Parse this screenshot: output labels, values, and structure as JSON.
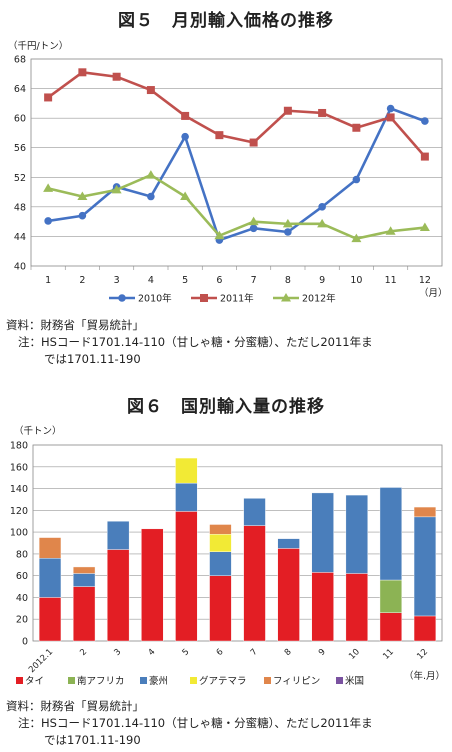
{
  "figure5": {
    "title": "図５　月別輸入価格の推移",
    "unit_label": "（千円/トン）",
    "x_unit_label": "（月）",
    "source": "資料：財務省「貿易統計」",
    "note_line1": "注：HSコード1701.14-110（甘しゃ糖・分蜜糖）、ただし2011年ま",
    "note_line2": "では1701.11-190"
  },
  "figure6": {
    "title": "図６　国別輸入量の推移",
    "unit_label": "（千トン）",
    "x_unit_label": "（年.月）",
    "source": "資料：財務省「貿易統計」",
    "note_line1": "注：HSコード1701.14-110（甘しゃ糖・分蜜糖）、ただし2011年ま",
    "note_line2": "では1701.11-190"
  },
  "chart_data": [
    {
      "type": "line",
      "title": "図５　月別輸入価格の推移",
      "ylabel": "（千円/トン）",
      "xlabel": "（月）",
      "categories": [
        "1",
        "2",
        "3",
        "4",
        "5",
        "6",
        "7",
        "8",
        "9",
        "10",
        "11",
        "12"
      ],
      "ylim": [
        40,
        68
      ],
      "yticks": [
        40,
        44,
        48,
        52,
        56,
        60,
        64,
        68
      ],
      "grid": true,
      "legend_position": "bottom",
      "series": [
        {
          "name": "2010年",
          "color": "#4472c4",
          "marker": "circle",
          "values": [
            46.1,
            46.8,
            50.7,
            49.4,
            57.5,
            43.5,
            45.1,
            44.6,
            48.0,
            51.7,
            61.3,
            59.6
          ]
        },
        {
          "name": "2011年",
          "color": "#c0504d",
          "marker": "square",
          "values": [
            62.8,
            66.2,
            65.6,
            63.8,
            60.3,
            57.7,
            56.7,
            61.0,
            60.7,
            58.7,
            60.1,
            54.8
          ]
        },
        {
          "name": "2012年",
          "color": "#9bbb59",
          "marker": "triangle",
          "values": [
            50.5,
            49.4,
            50.3,
            52.3,
            49.4,
            44.1,
            46.0,
            45.7,
            45.7,
            43.7,
            44.7,
            45.2
          ]
        }
      ]
    },
    {
      "type": "bar",
      "stacked": true,
      "title": "図６　国別輸入量の推移",
      "ylabel": "（千トン）",
      "xlabel": "（年.月）",
      "categories": [
        "2012.1",
        "2",
        "3",
        "4",
        "5",
        "6",
        "7",
        "8",
        "9",
        "10",
        "11",
        "12"
      ],
      "ylim": [
        0,
        180
      ],
      "yticks": [
        0,
        20,
        40,
        60,
        80,
        100,
        120,
        140,
        160,
        180
      ],
      "grid": true,
      "legend_position": "bottom",
      "series": [
        {
          "name": "タイ",
          "color": "#e31e24",
          "values": [
            40,
            50,
            84,
            103,
            119,
            60,
            106,
            85,
            63,
            62,
            26,
            23
          ]
        },
        {
          "name": "南アフリカ",
          "color": "#8cb354",
          "values": [
            0,
            0,
            0,
            0,
            0,
            0,
            0,
            0,
            0,
            0,
            30,
            0
          ]
        },
        {
          "name": "豪州",
          "color": "#4a7ebb",
          "values": [
            36,
            12,
            26,
            0,
            26,
            22,
            25,
            9,
            73,
            72,
            85,
            91
          ]
        },
        {
          "name": "グアテマラ",
          "color": "#f2ea35",
          "values": [
            0,
            0,
            0,
            0,
            23,
            16,
            0,
            0,
            0,
            0,
            0,
            0
          ]
        },
        {
          "name": "フィリピン",
          "color": "#e0864b",
          "values": [
            19,
            6,
            0,
            0,
            0,
            9,
            0,
            0,
            0,
            0,
            0,
            9
          ]
        },
        {
          "name": "米国",
          "color": "#7a52a0",
          "values": [
            0,
            0,
            0,
            0,
            0,
            0,
            0,
            0,
            0,
            0,
            0,
            0
          ]
        }
      ]
    }
  ]
}
